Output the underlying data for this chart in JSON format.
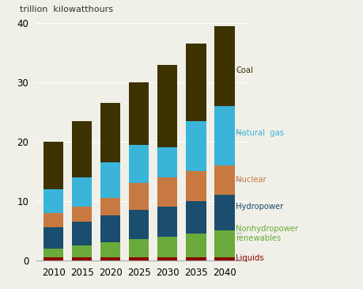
{
  "years": [
    2010,
    2015,
    2020,
    2025,
    2030,
    2035,
    2040
  ],
  "sources": [
    "Liquids",
    "Nonhydropower renewables",
    "Hydropower",
    "Nuclear",
    "Natural gas",
    "Coal"
  ],
  "colors": [
    "#8B0000",
    "#6aaa3a",
    "#1a4d6e",
    "#c87941",
    "#3ab4d9",
    "#3d3200"
  ],
  "values": {
    "Liquids": [
      0.5,
      0.5,
      0.5,
      0.5,
      0.5,
      0.5,
      0.5
    ],
    "Nonhydropower renewables": [
      1.5,
      2.0,
      2.5,
      3.0,
      3.5,
      4.0,
      4.5
    ],
    "Hydropower": [
      3.5,
      4.0,
      4.5,
      5.0,
      5.0,
      5.5,
      6.0
    ],
    "Nuclear": [
      2.5,
      2.5,
      3.0,
      4.5,
      5.0,
      5.0,
      5.0
    ],
    "Natural gas": [
      4.0,
      5.0,
      6.0,
      6.5,
      5.0,
      8.5,
      10.0
    ],
    "Coal": [
      8.0,
      9.5,
      10.0,
      10.5,
      14.0,
      13.0,
      13.5
    ]
  },
  "top_label": "trillion  kilowatthours",
  "ylim": [
    0,
    40
  ],
  "yticks": [
    0,
    10,
    20,
    30,
    40
  ],
  "legend_order": [
    "Coal",
    "Natural gas",
    "Nuclear",
    "Hydropower",
    "Nonhydropower renewables",
    "Liquids"
  ],
  "legend_labels": {
    "Coal": "Coal",
    "Natural gas": "Natural  gas",
    "Nuclear": "Nuclear",
    "Hydropower": "Hydropower",
    "Nonhydropower renewables": "Nonhydropower\nrenewables",
    "Liquids": "Liquids"
  },
  "legend_colors": {
    "Coal": "#3d3200",
    "Natural gas": "#3ab4d9",
    "Nuclear": "#c87941",
    "Hydropower": "#1a4d6e",
    "Nonhydropower renewables": "#6aaa3a",
    "Liquids": "#8B0000"
  },
  "legend_y_positions": {
    "Coal": 32.0,
    "Natural gas": 21.5,
    "Nuclear": 13.5,
    "Hydropower": 9.0,
    "Nonhydropower renewables": 4.5,
    "Liquids": 0.4
  },
  "background_color": "#f0f0e8",
  "bar_width": 3.5
}
